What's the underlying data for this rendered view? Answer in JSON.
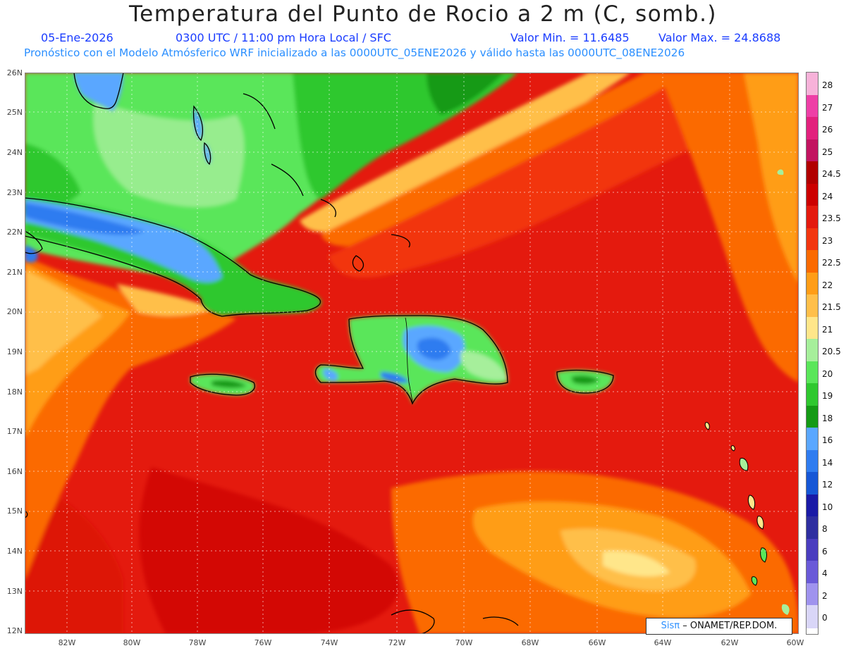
{
  "header": {
    "title": "Temperatura del Punto de Rocio a 2 m (C, somb.)",
    "date": "05-Ene-2026",
    "time": "0300 UTC / 11:00 pm Hora Local / SFC",
    "valmin": "Valor Min. = 11.6485",
    "valmax": "Valor Max. = 24.8688",
    "forecast": "Pronóstico con el Modelo Atmósferico WRF inicializado a las 0000UTC_05ENE2026 y válido hasta las  0000UTC_08ENE2026"
  },
  "axes": {
    "lat_labels": [
      "26N",
      "25N",
      "24N",
      "23N",
      "22N",
      "21N",
      "20N",
      "19N",
      "18N",
      "17N",
      "16N",
      "15N",
      "14N",
      "13N",
      "12N"
    ],
    "lon_labels": [
      "82W",
      "80W",
      "78W",
      "76W",
      "74W",
      "72W",
      "70W",
      "68W",
      "66W",
      "64W",
      "62W",
      "60W"
    ]
  },
  "legend": {
    "labels": [
      "28",
      "27",
      "26",
      "25",
      "24.5",
      "24",
      "23.5",
      "23",
      "22.5",
      "22",
      "21.5",
      "21",
      "20.5",
      "20",
      "19",
      "18",
      "16",
      "14",
      "12",
      "10",
      "8",
      "6",
      "4",
      "2",
      "0"
    ],
    "colors": [
      "#f7b2d9",
      "#ee3fa6",
      "#e2217d",
      "#c21460",
      "#b10000",
      "#cc0000",
      "#e41a0e",
      "#f2360f",
      "#fb6a00",
      "#ff9d17",
      "#ffbf4a",
      "#ffe68a",
      "#a6ef9b",
      "#5ae65a",
      "#2fc82f",
      "#159a15",
      "#5aa7ff",
      "#2f7cf0",
      "#1657d6",
      "#1a1aa6",
      "#2e2ea0",
      "#4a3dbf",
      "#6a5ad8",
      "#9f93ee",
      "#d9d6f8"
    ]
  },
  "credit": {
    "sis": "Sisπ",
    "org": "– ONAMET/REP.DOM."
  },
  "colors": {
    "label_blue": "#1a3cff",
    "label_lightblue": "#2b8fff"
  }
}
